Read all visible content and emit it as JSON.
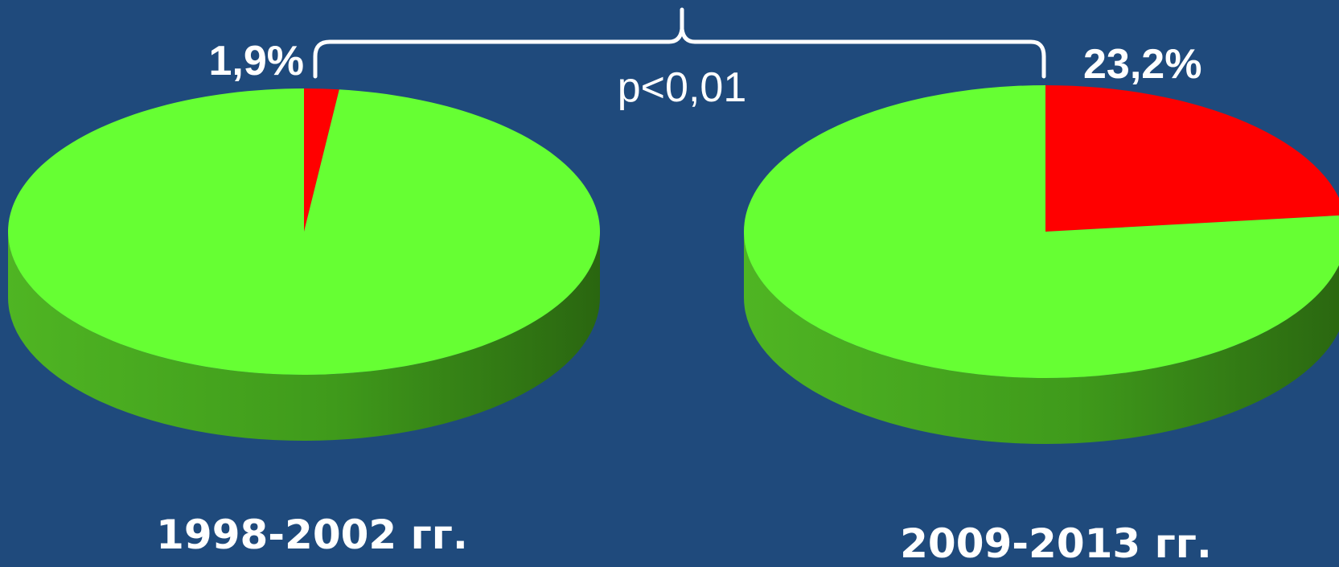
{
  "colors": {
    "background": "#1f4a7c",
    "highlight": "#ff0000",
    "remainder": "#66ff33",
    "side_dark": "#2e6e12",
    "side_light": "#58c427",
    "text": "#ffffff"
  },
  "comparison_label": "p<0,01",
  "chart_data": [
    {
      "type": "pie",
      "title": "",
      "caption": "1998-2002 гг.",
      "slices": [
        {
          "label": "1,9%",
          "value": 1.9,
          "color": "#ff0000"
        },
        {
          "label": "",
          "value": 98.1,
          "color": "#66ff33"
        }
      ]
    },
    {
      "type": "pie",
      "title": "",
      "caption": "2009-2013 гг.",
      "slices": [
        {
          "label": "23,2%",
          "value": 23.2,
          "color": "#ff0000"
        },
        {
          "label": "",
          "value": 76.8,
          "color": "#66ff33"
        }
      ]
    }
  ]
}
